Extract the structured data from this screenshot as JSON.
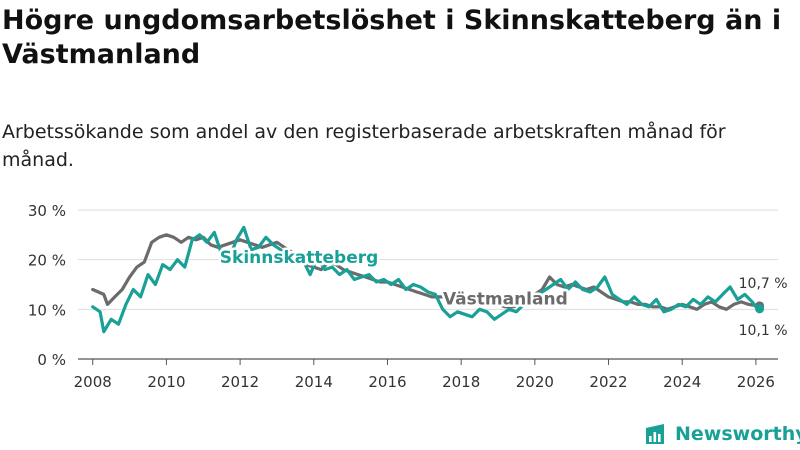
{
  "header": {
    "title": "Högre ungdomsarbetslöshet i Skinnskatteberg än i Västmanland",
    "subtitle": "Arbetssökande som andel av den registerbaserade arbetskraften månad för månad."
  },
  "branding": {
    "name": "Newsworthy",
    "color": "#19a097"
  },
  "chart_data": {
    "type": "line",
    "title": "Högre ungdomsarbetslöshet i Skinnskatteberg än i Västmanland",
    "xlabel": "",
    "ylabel": "",
    "xlim": [
      2007.6,
      2026.6
    ],
    "ylim": [
      0,
      30
    ],
    "grid": true,
    "x_ticks": [
      2008,
      2010,
      2012,
      2014,
      2016,
      2018,
      2020,
      2022,
      2024,
      2026
    ],
    "x_tick_labels": [
      "2008",
      "2010",
      "2012",
      "2014",
      "2016",
      "2018",
      "2020",
      "2022",
      "2024",
      "2026"
    ],
    "y_ticks": [
      0,
      10,
      20,
      30
    ],
    "y_tick_labels": [
      "0 %",
      "10 %",
      "20 %",
      "30 %"
    ],
    "series": [
      {
        "name": "Västmanland",
        "color": "#6b6b6b",
        "x": [
          2008.0,
          2008.3,
          2008.4,
          2008.6,
          2008.8,
          2009.0,
          2009.2,
          2009.4,
          2009.6,
          2009.8,
          2010.0,
          2010.2,
          2010.4,
          2010.6,
          2010.8,
          2011.0,
          2011.2,
          2011.4,
          2011.6,
          2011.8,
          2012.0,
          2012.2,
          2012.4,
          2012.6,
          2012.8,
          2013.0,
          2013.2,
          2013.4,
          2013.6,
          2013.8,
          2014.0,
          2014.2,
          2014.4,
          2014.6,
          2014.8,
          2015.0,
          2015.2,
          2015.4,
          2015.6,
          2015.8,
          2016.0,
          2016.2,
          2016.4,
          2016.6,
          2016.8,
          2017.0,
          2017.2,
          2017.4,
          2017.6,
          2017.8,
          2018.0,
          2018.2,
          2018.4,
          2018.6,
          2018.8,
          2019.0,
          2019.2,
          2019.4,
          2019.6,
          2019.8,
          2020.0,
          2020.2,
          2020.4,
          2020.6,
          2020.8,
          2021.0,
          2021.2,
          2021.4,
          2021.6,
          2021.8,
          2022.0,
          2022.2,
          2022.4,
          2022.6,
          2022.8,
          2023.0,
          2023.2,
          2023.4,
          2023.6,
          2023.8,
          2024.0,
          2024.2,
          2024.4,
          2024.6,
          2024.8,
          2025.0,
          2025.2,
          2025.4,
          2025.6,
          2025.8,
          2026.0,
          2026.1
        ],
        "values": [
          14.0,
          13.0,
          11.0,
          12.5,
          14.0,
          16.5,
          18.5,
          19.5,
          23.5,
          24.5,
          25.0,
          24.5,
          23.5,
          24.5,
          24.0,
          24.5,
          23.0,
          22.5,
          23.0,
          23.5,
          24.0,
          23.5,
          23.0,
          22.5,
          23.0,
          23.5,
          22.5,
          21.5,
          20.5,
          19.0,
          18.5,
          18.0,
          19.5,
          19.0,
          18.0,
          17.5,
          17.0,
          16.5,
          16.0,
          15.5,
          15.5,
          15.0,
          14.5,
          14.0,
          13.5,
          13.0,
          12.5,
          12.5,
          12.5,
          13.0,
          12.5,
          12.0,
          11.5,
          11.0,
          11.0,
          11.0,
          10.5,
          10.5,
          11.0,
          12.0,
          13.0,
          14.0,
          16.5,
          15.0,
          14.5,
          15.0,
          14.5,
          14.0,
          14.5,
          13.5,
          12.5,
          12.0,
          11.5,
          11.5,
          11.0,
          11.0,
          10.5,
          10.5,
          10.0,
          10.5,
          11.0,
          10.5,
          10.0,
          11.0,
          11.5,
          10.5,
          10.0,
          11.0,
          11.5,
          11.0,
          10.8,
          10.7
        ]
      },
      {
        "name": "Skinnskatteberg",
        "color": "#19a097",
        "x": [
          2008.0,
          2008.2,
          2008.3,
          2008.5,
          2008.7,
          2008.9,
          2009.1,
          2009.3,
          2009.5,
          2009.7,
          2009.9,
          2010.1,
          2010.3,
          2010.5,
          2010.7,
          2010.9,
          2011.1,
          2011.3,
          2011.5,
          2011.7,
          2011.9,
          2012.1,
          2012.3,
          2012.5,
          2012.7,
          2012.9,
          2013.1,
          2013.3,
          2013.5,
          2013.7,
          2013.9,
          2014.1,
          2014.3,
          2014.5,
          2014.7,
          2014.9,
          2015.1,
          2015.3,
          2015.5,
          2015.7,
          2015.9,
          2016.1,
          2016.3,
          2016.5,
          2016.7,
          2016.9,
          2017.1,
          2017.3,
          2017.5,
          2017.7,
          2017.9,
          2018.1,
          2018.3,
          2018.5,
          2018.7,
          2018.9,
          2019.1,
          2019.3,
          2019.5,
          2019.7,
          2019.9,
          2020.1,
          2020.3,
          2020.5,
          2020.7,
          2020.9,
          2021.1,
          2021.3,
          2021.5,
          2021.7,
          2021.9,
          2022.1,
          2022.3,
          2022.5,
          2022.7,
          2022.9,
          2023.1,
          2023.3,
          2023.5,
          2023.7,
          2023.9,
          2024.1,
          2024.3,
          2024.5,
          2024.7,
          2024.9,
          2025.1,
          2025.3,
          2025.5,
          2025.7,
          2025.9,
          2026.0,
          2026.1
        ],
        "values": [
          10.5,
          9.5,
          5.5,
          8.0,
          7.0,
          11.0,
          14.0,
          12.5,
          17.0,
          15.0,
          19.0,
          18.0,
          20.0,
          18.5,
          24.0,
          25.0,
          23.5,
          25.5,
          21.0,
          20.0,
          24.0,
          26.5,
          22.0,
          22.5,
          24.5,
          23.0,
          22.0,
          21.0,
          19.5,
          20.0,
          17.0,
          20.5,
          18.0,
          18.5,
          17.0,
          18.0,
          16.0,
          16.5,
          17.0,
          15.5,
          16.0,
          15.0,
          16.0,
          14.0,
          15.0,
          14.5,
          13.5,
          13.0,
          10.0,
          8.5,
          9.5,
          9.0,
          8.5,
          10.0,
          9.5,
          8.0,
          9.0,
          10.0,
          9.5,
          11.0,
          12.0,
          13.0,
          14.0,
          15.0,
          16.0,
          14.0,
          15.5,
          14.0,
          13.5,
          14.5,
          16.5,
          13.0,
          12.0,
          11.0,
          12.5,
          11.0,
          10.5,
          12.0,
          9.5,
          10.0,
          11.0,
          10.5,
          12.0,
          11.0,
          12.5,
          11.5,
          13.0,
          14.5,
          12.0,
          13.0,
          11.5,
          10.5,
          10.1
        ]
      }
    ],
    "annotations": [
      {
        "series": "Skinnskatteberg",
        "text": "Skinnskatteberg",
        "x": 2013.6,
        "y": 20.5
      },
      {
        "series": "Västmanland",
        "text": "Västmanland",
        "x": 2019.2,
        "y": 12.2
      },
      {
        "series": "Västmanland",
        "text": "10,7 %",
        "x": 2026.1,
        "y": 10.7
      },
      {
        "series": "Skinnskatteberg",
        "text": "10,1 %",
        "x": 2026.1,
        "y": 10.1
      }
    ]
  }
}
